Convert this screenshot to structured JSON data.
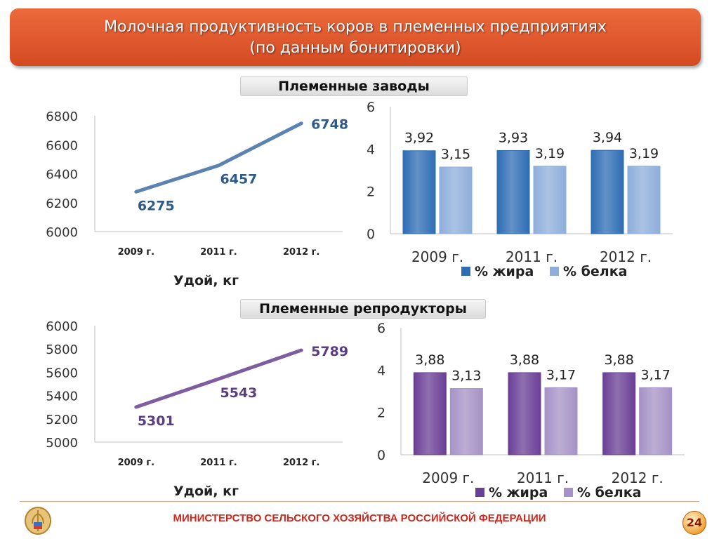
{
  "header": {
    "title_line1": "Молочная продуктивность коров в племенных предприятиях",
    "title_line2": "(по данным бонитировки)"
  },
  "sections": [
    {
      "label": "Племенные заводы"
    },
    {
      "label": "Племенные репродукторы"
    }
  ],
  "colors": {
    "zavody_line": "#5b83b0",
    "zavody_fat": "#2e6db4",
    "zavody_protein": "#8eaedb",
    "reprod_line": "#7d5d9f",
    "reprod_fat": "#6a3f96",
    "reprod_protein": "#a592c6",
    "zavody_label": "#2e5a8a",
    "reprod_label": "#5a3d80"
  },
  "chart_data": [
    {
      "type": "line",
      "categories": [
        "2009 г.",
        "2011 г.",
        "2012 г."
      ],
      "series": [
        {
          "name": "",
          "values": [
            6275,
            6457,
            6748
          ]
        }
      ],
      "value_labels": [
        "6275",
        "6457",
        "6748"
      ],
      "xlabel": "Удой, кг",
      "ylim": [
        6000,
        6800
      ],
      "yticks": [
        "6000",
        "6200",
        "6400",
        "6600",
        "6800"
      ],
      "grid": false
    },
    {
      "type": "bar",
      "categories": [
        "2009 г.",
        "2011 г.",
        "2012 г."
      ],
      "series": [
        {
          "name": "% жира",
          "values": [
            3.92,
            3.93,
            3.94
          ],
          "labels": [
            "3,92",
            "3,93",
            "3,94"
          ]
        },
        {
          "name": "% белка",
          "values": [
            3.15,
            3.19,
            3.19
          ],
          "labels": [
            "3,15",
            "3,19",
            "3,19"
          ]
        }
      ],
      "ylim": [
        0,
        6
      ],
      "yticks": [
        "0",
        "2",
        "4",
        "6"
      ],
      "legend": "bottom",
      "grid": false
    },
    {
      "type": "line",
      "categories": [
        "2009 г.",
        "2011 г.",
        "2012 г."
      ],
      "series": [
        {
          "name": "",
          "values": [
            5301,
            5543,
            5789
          ]
        }
      ],
      "value_labels": [
        "5301",
        "5543",
        "5789"
      ],
      "xlabel": "Удой, кг",
      "ylim": [
        5000,
        6000
      ],
      "yticks": [
        "5000",
        "5200",
        "5400",
        "5600",
        "5800",
        "6000"
      ],
      "grid": false
    },
    {
      "type": "bar",
      "categories": [
        "2009 г.",
        "2011 г.",
        "2012 г."
      ],
      "series": [
        {
          "name": "% жира",
          "values": [
            3.88,
            3.88,
            3.88
          ],
          "labels": [
            "3,88",
            "3,88",
            "3,88"
          ]
        },
        {
          "name": "% белка",
          "values": [
            3.13,
            3.17,
            3.17
          ],
          "labels": [
            "3,13",
            "3,17",
            "3,17"
          ]
        }
      ],
      "ylim": [
        0,
        6
      ],
      "yticks": [
        "0",
        "2",
        "4",
        "6"
      ],
      "legend": "bottom",
      "grid": false
    }
  ],
  "footer": {
    "ministry": "МИНИСТЕРСТВО СЕЛЬСКОГО ХОЗЯЙСТВА РОССИЙСКОЙ ФЕДЕРАЦИИ",
    "page": "24"
  }
}
